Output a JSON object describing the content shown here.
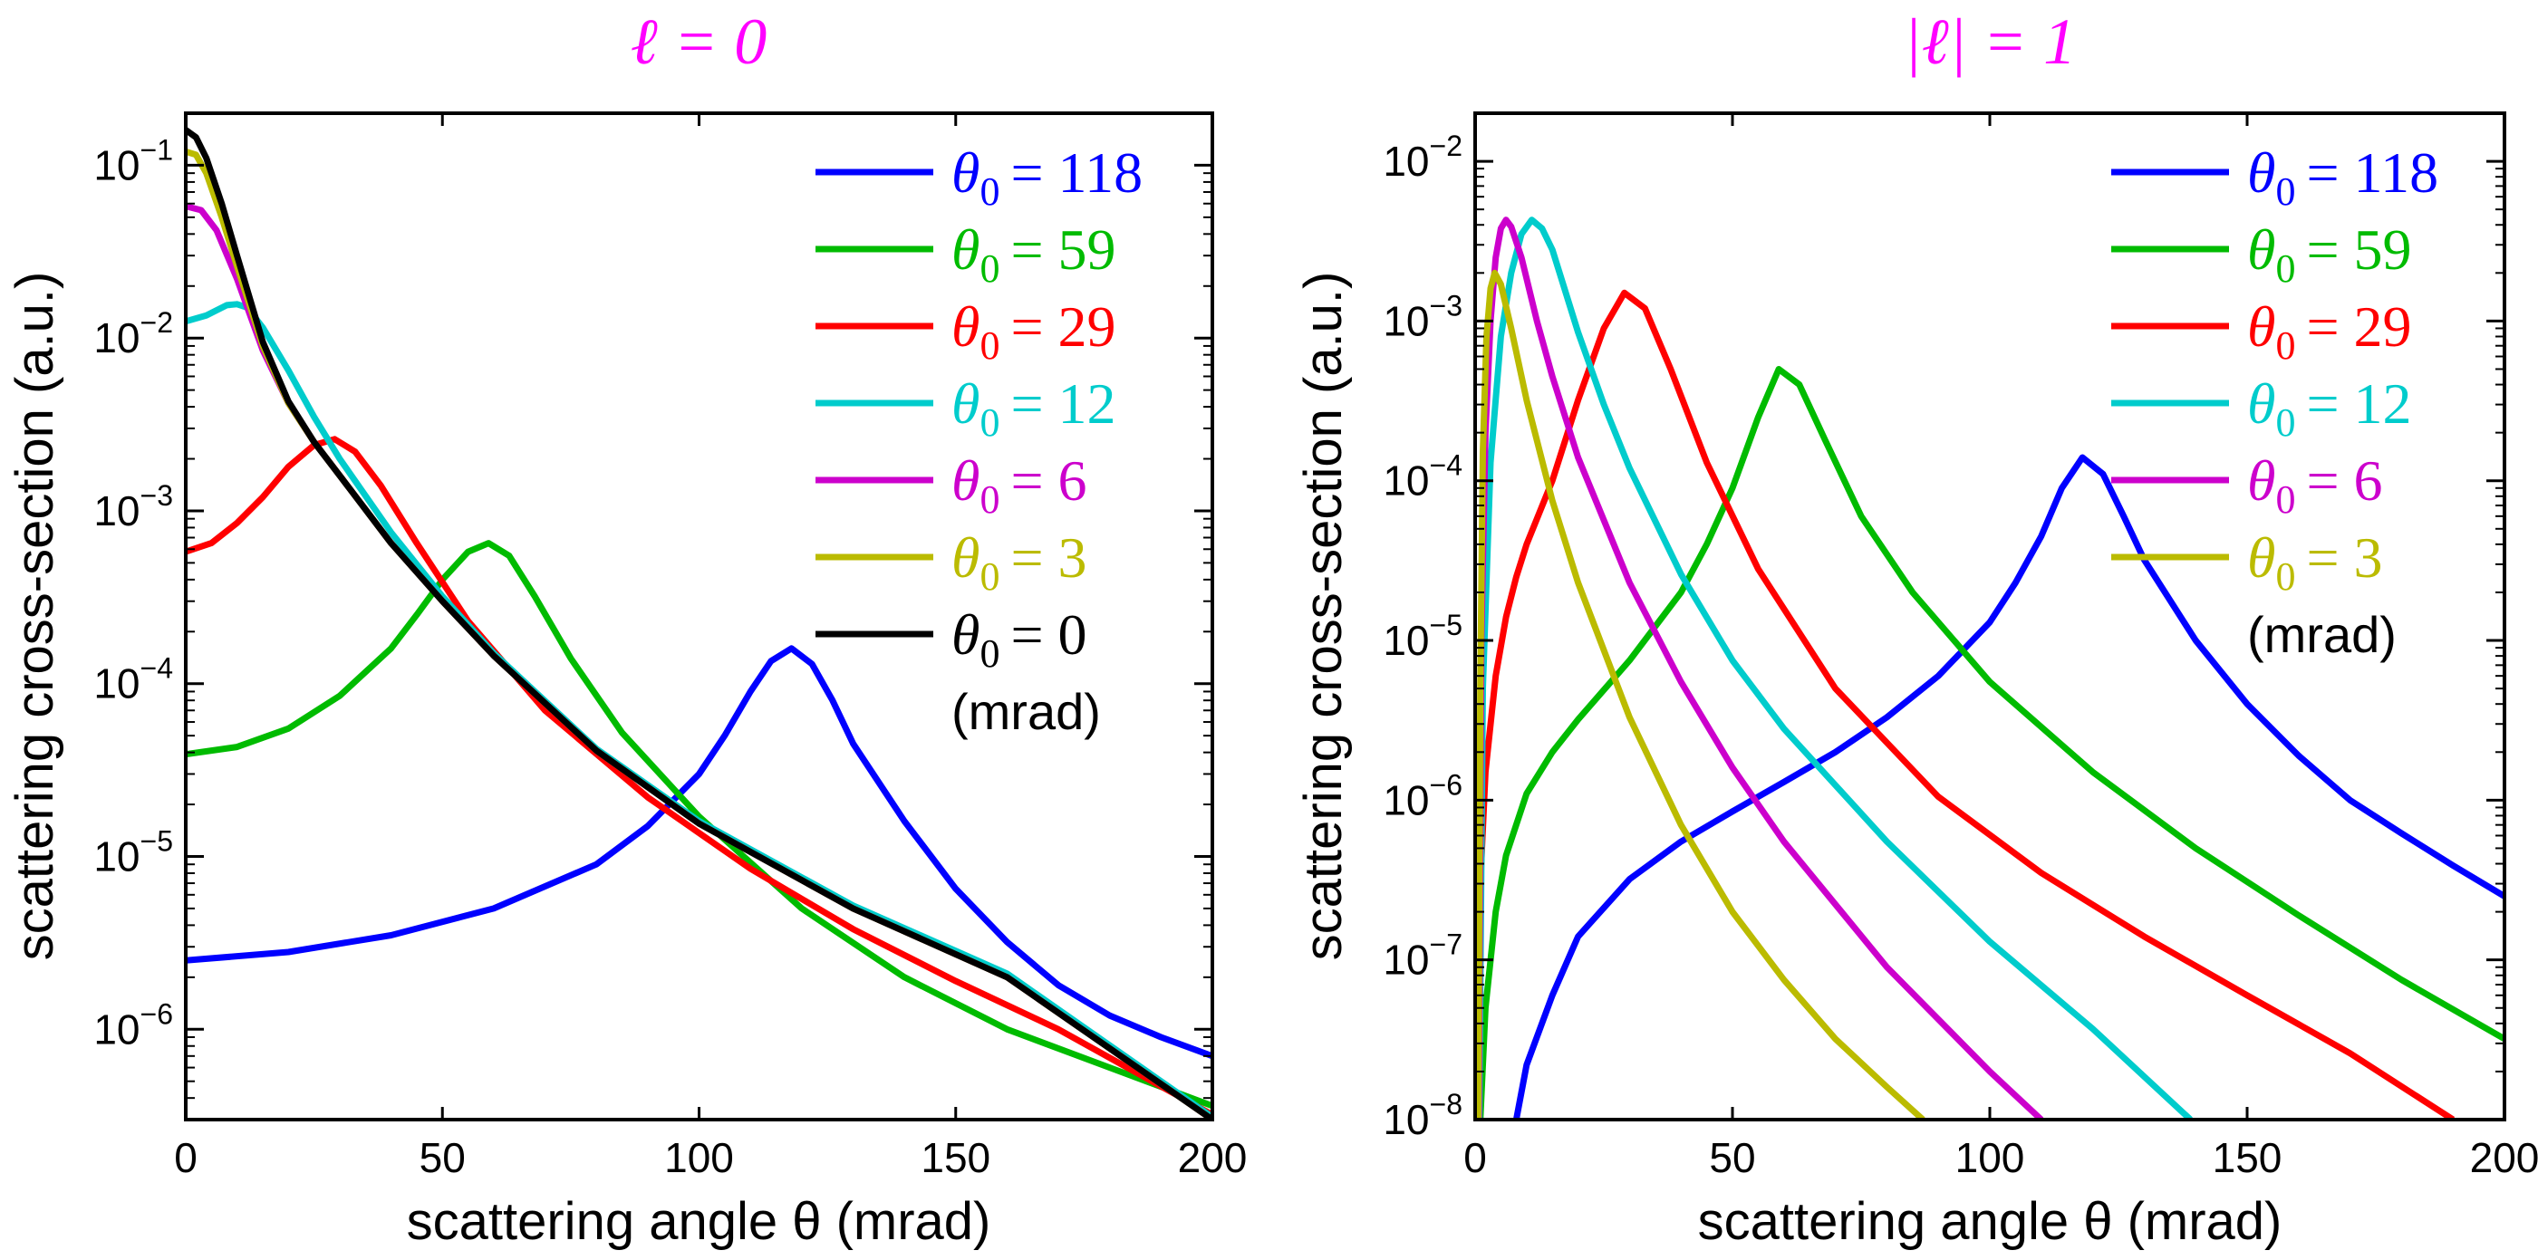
{
  "chart_data": [
    {
      "type": "line",
      "title": "ℓ = 0",
      "title_color": "#ff00ff",
      "xlabel": "scattering angle θ (mrad)",
      "ylabel": "scattering cross-section (a.u.)",
      "xlim": [
        0,
        200
      ],
      "ylim": [
        3e-07,
        0.2
      ],
      "yscale": "log",
      "grid": false,
      "legend_placement": "top-right",
      "legend_note": "(mrad)",
      "x_ticks": [
        "0",
        "50",
        "100",
        "150",
        "200"
      ],
      "y_ticks": [
        {
          "base": "10",
          "exp": "−1",
          "value": 0.1
        },
        {
          "base": "10",
          "exp": "−2",
          "value": 0.01
        },
        {
          "base": "10",
          "exp": "−3",
          "value": 0.001
        },
        {
          "base": "10",
          "exp": "−4",
          "value": 0.0001
        },
        {
          "base": "10",
          "exp": "−5",
          "value": 1e-05
        },
        {
          "base": "10",
          "exp": "−6",
          "value": 1e-06
        }
      ],
      "series": [
        {
          "name": "θ0 = 118",
          "label_symbol": "θ",
          "label_sub": "0",
          "label_value": "= 118",
          "color": "#0000ff",
          "x": [
            0,
            20,
            40,
            60,
            80,
            90,
            100,
            105,
            110,
            114,
            118,
            122,
            126,
            130,
            140,
            150,
            160,
            170,
            180,
            190,
            200
          ],
          "y": [
            2.5e-06,
            2.8e-06,
            3.5e-06,
            5e-06,
            9e-06,
            1.5e-05,
            3e-05,
            5e-05,
            9e-05,
            0.000135,
            0.00016,
            0.00013,
            8e-05,
            4.5e-05,
            1.6e-05,
            6.5e-06,
            3.2e-06,
            1.8e-06,
            1.2e-06,
            9e-07,
            7e-07
          ]
        },
        {
          "name": "θ0 = 59",
          "label_symbol": "θ",
          "label_sub": "0",
          "label_value": "= 59",
          "color": "#00bb00",
          "x": [
            0,
            10,
            20,
            30,
            40,
            45,
            50,
            55,
            59,
            63,
            68,
            75,
            85,
            100,
            120,
            140,
            160,
            180,
            200
          ],
          "y": [
            3.9e-05,
            4.3e-05,
            5.5e-05,
            8.5e-05,
            0.00016,
            0.00025,
            0.0004,
            0.00058,
            0.00065,
            0.00055,
            0.00032,
            0.00014,
            5.2e-05,
            1.7e-05,
            5e-06,
            2e-06,
            1e-06,
            6e-07,
            3.6e-07
          ]
        },
        {
          "name": "θ0 = 29",
          "label_symbol": "θ",
          "label_sub": "0",
          "label_value": "= 29",
          "color": "#ff0000",
          "x": [
            0,
            5,
            10,
            15,
            20,
            25,
            29,
            33,
            38,
            45,
            55,
            70,
            90,
            110,
            130,
            150,
            170,
            200
          ],
          "y": [
            0.00058,
            0.00065,
            0.00085,
            0.0012,
            0.0018,
            0.0024,
            0.0026,
            0.0022,
            0.0014,
            0.00065,
            0.00023,
            7e-05,
            2.2e-05,
            8.5e-06,
            3.8e-06,
            1.9e-06,
            1e-06,
            3.2e-07
          ]
        },
        {
          "name": "θ0 = 12",
          "label_symbol": "θ",
          "label_sub": "0",
          "label_value": "= 12",
          "color": "#00cccc",
          "x": [
            0,
            4,
            8,
            10,
            12,
            15,
            20,
            25,
            30,
            40,
            50,
            60,
            80,
            100,
            130,
            160,
            200
          ],
          "y": [
            0.0125,
            0.0135,
            0.0155,
            0.0157,
            0.015,
            0.0115,
            0.0065,
            0.0035,
            0.002,
            0.00075,
            0.00032,
            0.00015,
            4.2e-05,
            1.6e-05,
            5.2e-06,
            2.1e-06,
            3.1e-07
          ]
        },
        {
          "name": "θ0 = 6",
          "label_symbol": "θ",
          "label_sub": "0",
          "label_value": "= 6",
          "color": "#cc00cc",
          "x": [
            0,
            3,
            6,
            10,
            15,
            20,
            25,
            30,
            40,
            50,
            60,
            80,
            100,
            130,
            160,
            200
          ],
          "y": [
            0.058,
            0.055,
            0.042,
            0.022,
            0.0085,
            0.0042,
            0.0025,
            0.0016,
            0.00065,
            0.0003,
            0.000145,
            4.1e-05,
            1.55e-05,
            5e-06,
            2e-06,
            3e-07
          ]
        },
        {
          "name": "θ0 = 3",
          "label_symbol": "θ",
          "label_sub": "0",
          "label_value": "= 3",
          "color": "#bbbb00",
          "x": [
            0,
            2,
            4,
            7,
            10,
            15,
            20,
            25,
            30,
            40,
            50,
            60,
            80,
            100,
            130,
            160,
            200
          ],
          "y": [
            0.12,
            0.115,
            0.09,
            0.05,
            0.026,
            0.009,
            0.0042,
            0.0025,
            0.0016,
            0.00065,
            0.0003,
            0.000145,
            4.1e-05,
            1.55e-05,
            5e-06,
            2e-06,
            3e-07
          ]
        },
        {
          "name": "θ0 = 0",
          "label_symbol": "θ",
          "label_sub": "0",
          "label_value": "= 0",
          "color": "#000000",
          "x": [
            0,
            2,
            4,
            7,
            10,
            15,
            20,
            25,
            30,
            40,
            50,
            60,
            80,
            100,
            130,
            160,
            200
          ],
          "y": [
            0.16,
            0.145,
            0.11,
            0.06,
            0.03,
            0.0095,
            0.0043,
            0.0025,
            0.0016,
            0.00065,
            0.0003,
            0.000145,
            4.1e-05,
            1.55e-05,
            5e-06,
            2e-06,
            3e-07
          ]
        }
      ]
    },
    {
      "type": "line",
      "title": "|ℓ| = 1",
      "title_color": "#ff00ff",
      "xlabel": "scattering angle θ (mrad)",
      "ylabel": "scattering cross-section (a.u.)",
      "xlim": [
        0,
        200
      ],
      "ylim": [
        1e-08,
        0.02
      ],
      "yscale": "log",
      "grid": false,
      "legend_placement": "top-right",
      "legend_note": "(mrad)",
      "x_ticks": [
        "0",
        "50",
        "100",
        "150",
        "200"
      ],
      "y_ticks": [
        {
          "base": "10",
          "exp": "−2",
          "value": 0.01
        },
        {
          "base": "10",
          "exp": "−3",
          "value": 0.001
        },
        {
          "base": "10",
          "exp": "−4",
          "value": 0.0001
        },
        {
          "base": "10",
          "exp": "−5",
          "value": 1e-05
        },
        {
          "base": "10",
          "exp": "−6",
          "value": 1e-06
        },
        {
          "base": "10",
          "exp": "−7",
          "value": 1e-07
        },
        {
          "base": "10",
          "exp": "−8",
          "value": 1e-08
        }
      ],
      "series": [
        {
          "name": "θ0 = 118",
          "label_symbol": "θ",
          "label_sub": "0",
          "label_value": "= 118",
          "color": "#0000ff",
          "x": [
            8,
            10,
            15,
            20,
            30,
            40,
            50,
            60,
            70,
            80,
            90,
            100,
            105,
            110,
            114,
            118,
            122,
            126,
            130,
            140,
            150,
            160,
            170,
            180,
            190,
            200
          ],
          "y": [
            1e-08,
            2.2e-08,
            6e-08,
            1.4e-07,
            3.2e-07,
            5.5e-07,
            8.5e-07,
            1.3e-06,
            2e-06,
            3.3e-06,
            6e-06,
            1.3e-05,
            2.3e-05,
            4.5e-05,
            9e-05,
            0.00014,
            0.00011,
            6e-05,
            3.2e-05,
            1e-05,
            4e-06,
            1.9e-06,
            1e-06,
            6.2e-07,
            3.9e-07,
            2.5e-07
          ]
        },
        {
          "name": "θ0 = 59",
          "label_symbol": "θ",
          "label_sub": "0",
          "label_value": "= 59",
          "color": "#00bb00",
          "x": [
            1,
            2,
            4,
            6,
            10,
            15,
            20,
            30,
            40,
            45,
            50,
            55,
            59,
            63,
            68,
            75,
            85,
            100,
            120,
            140,
            160,
            180,
            200
          ],
          "y": [
            1e-08,
            5e-08,
            2e-07,
            4.5e-07,
            1.1e-06,
            2e-06,
            3.2e-06,
            7.5e-06,
            2e-05,
            4e-05,
            9e-05,
            0.00025,
            0.0005,
            0.0004,
            0.00018,
            6e-05,
            2e-05,
            5.5e-06,
            1.5e-06,
            5e-07,
            1.9e-07,
            7.5e-08,
            3.2e-08
          ]
        },
        {
          "name": "θ0 = 29",
          "label_symbol": "θ",
          "label_sub": "0",
          "label_value": "= 29",
          "color": "#ff0000",
          "x": [
            1,
            2,
            4,
            6,
            8,
            10,
            15,
            20,
            25,
            29,
            33,
            38,
            45,
            55,
            70,
            90,
            110,
            130,
            150,
            170,
            190
          ],
          "y": [
            3e-07,
            1.5e-06,
            6e-06,
            1.4e-05,
            2.5e-05,
            4e-05,
            0.0001,
            0.00032,
            0.0009,
            0.0015,
            0.0012,
            0.0005,
            0.00013,
            2.8e-05,
            5e-06,
            1.05e-06,
            3.5e-07,
            1.4e-07,
            6e-08,
            2.6e-08,
            1e-08
          ]
        },
        {
          "name": "θ0 = 12",
          "label_symbol": "θ",
          "label_sub": "0",
          "label_value": "= 12",
          "color": "#00cccc",
          "x": [
            0.8,
            1.5,
            3,
            5,
            7,
            9,
            11,
            13,
            15,
            20,
            25,
            30,
            40,
            50,
            60,
            80,
            100,
            120,
            139
          ],
          "y": [
            1e-08,
            5e-06,
            0.00013,
            0.0008,
            0.002,
            0.0035,
            0.0043,
            0.0038,
            0.0028,
            0.00085,
            0.0003,
            0.00012,
            2.6e-05,
            7.5e-06,
            2.8e-06,
            5.5e-07,
            1.3e-07,
            3.7e-08,
            1e-08
          ]
        },
        {
          "name": "θ0 = 6",
          "label_symbol": "θ",
          "label_sub": "0",
          "label_value": "= 6",
          "color": "#cc00cc",
          "x": [
            0.7,
            1.2,
            2,
            3,
            4,
            5,
            6,
            7,
            9,
            12,
            15,
            20,
            30,
            40,
            50,
            60,
            80,
            100,
            110
          ],
          "y": [
            1e-08,
            1e-05,
            0.0002,
            0.001,
            0.0025,
            0.0038,
            0.0043,
            0.0039,
            0.0025,
            0.001,
            0.00045,
            0.00014,
            2.3e-05,
            5.5e-06,
            1.6e-06,
            5.5e-07,
            9e-08,
            2e-08,
            1e-08
          ]
        },
        {
          "name": "θ0 = 3",
          "label_symbol": "θ",
          "label_sub": "0",
          "label_value": "= 3",
          "color": "#bbbb00",
          "x": [
            0.6,
            1,
            1.5,
            2.2,
            3,
            3.8,
            5,
            7,
            10,
            15,
            20,
            30,
            40,
            50,
            60,
            70,
            80,
            87
          ],
          "y": [
            1e-08,
            5e-06,
            0.00015,
            0.0008,
            0.0016,
            0.002,
            0.0017,
            0.0009,
            0.00032,
            7.5e-05,
            2.3e-05,
            3.3e-06,
            7e-07,
            2e-07,
            7.5e-08,
            3.2e-08,
            1.6e-08,
            1e-08
          ]
        }
      ]
    }
  ]
}
